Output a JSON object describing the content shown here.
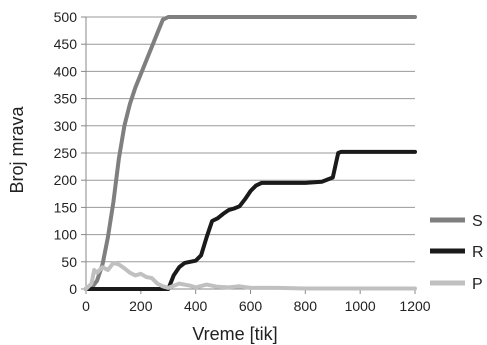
{
  "chart_data": {
    "type": "line",
    "xlabel": "Vreme [tik]",
    "ylabel": "Broj mrava",
    "xlim": [
      0,
      1200
    ],
    "ylim": [
      0,
      500
    ],
    "xticks": [
      0,
      200,
      400,
      600,
      800,
      1000,
      1200
    ],
    "yticks": [
      0,
      50,
      100,
      150,
      200,
      250,
      300,
      350,
      400,
      450,
      500
    ],
    "grid": "horizontal",
    "legend": "right",
    "series": [
      {
        "name": "S",
        "color": "#7f7f7f",
        "x": [
          0,
          20,
          40,
          60,
          80,
          100,
          120,
          140,
          160,
          180,
          200,
          220,
          240,
          260,
          280,
          300,
          320,
          1200
        ],
        "y": [
          0,
          2,
          15,
          45,
          95,
          160,
          240,
          300,
          340,
          370,
          395,
          420,
          445,
          470,
          495,
          500,
          500,
          500
        ]
      },
      {
        "name": "R",
        "color": "#1a1a1a",
        "x": [
          0,
          300,
          320,
          340,
          360,
          380,
          400,
          420,
          440,
          460,
          480,
          500,
          520,
          540,
          560,
          580,
          600,
          620,
          640,
          660,
          680,
          700,
          800,
          860,
          900,
          920,
          930,
          1000,
          1200
        ],
        "y": [
          0,
          0,
          25,
          40,
          48,
          50,
          52,
          62,
          95,
          125,
          130,
          138,
          145,
          148,
          152,
          165,
          180,
          190,
          195,
          195,
          195,
          195,
          195,
          197,
          205,
          250,
          252,
          252,
          252
        ]
      },
      {
        "name": "P",
        "color": "#c0c0c0",
        "x": [
          0,
          20,
          30,
          40,
          60,
          80,
          100,
          120,
          140,
          160,
          180,
          200,
          220,
          240,
          260,
          280,
          300,
          340,
          380,
          400,
          440,
          480,
          520,
          560,
          600,
          700,
          800,
          1000,
          1200
        ],
        "y": [
          0,
          10,
          35,
          30,
          40,
          35,
          48,
          45,
          38,
          30,
          25,
          28,
          22,
          20,
          10,
          5,
          2,
          10,
          6,
          3,
          8,
          4,
          3,
          5,
          2,
          2,
          1,
          1,
          1
        ]
      }
    ]
  }
}
